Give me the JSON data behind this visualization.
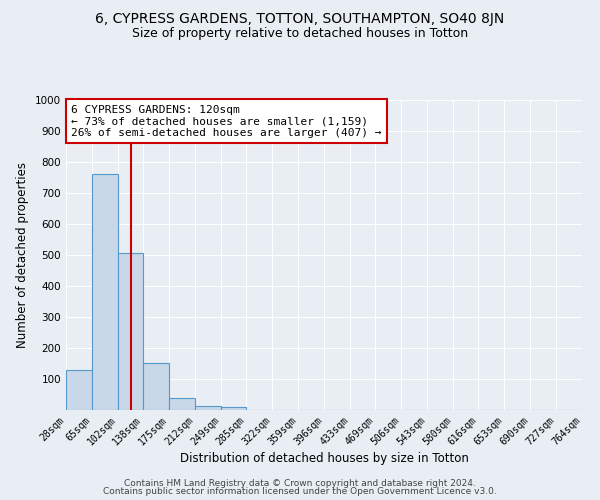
{
  "title": "6, CYPRESS GARDENS, TOTTON, SOUTHAMPTON, SO40 8JN",
  "subtitle": "Size of property relative to detached houses in Totton",
  "xlabel": "Distribution of detached houses by size in Totton",
  "ylabel": "Number of detached properties",
  "bin_edges": [
    28,
    65,
    102,
    138,
    175,
    212,
    249,
    285,
    322,
    359,
    396,
    433,
    469,
    506,
    543,
    580,
    616,
    653,
    690,
    727,
    764
  ],
  "bar_heights": [
    128,
    760,
    507,
    152,
    38,
    13,
    10,
    0,
    0,
    0,
    0,
    0,
    0,
    0,
    0,
    0,
    0,
    0,
    0,
    0
  ],
  "bar_color": "#c8d8e8",
  "bar_edge_color": "#5599cc",
  "property_size": 120,
  "red_line_color": "#cc0000",
  "annotation_text": "6 CYPRESS GARDENS: 120sqm\n← 73% of detached houses are smaller (1,159)\n26% of semi-detached houses are larger (407) →",
  "annotation_box_color": "#ffffff",
  "annotation_box_edge_color": "#cc0000",
  "ylim": [
    0,
    1000
  ],
  "yticks": [
    100,
    200,
    300,
    400,
    500,
    600,
    700,
    800,
    900,
    1000
  ],
  "background_color": "#e8eef4",
  "grid_color": "#ffffff",
  "footer_line1": "Contains HM Land Registry data © Crown copyright and database right 2024.",
  "footer_line2": "Contains public sector information licensed under the Open Government Licence v3.0.",
  "title_fontsize": 10,
  "subtitle_fontsize": 9,
  "tick_label_fontsize": 7,
  "axis_label_fontsize": 8.5,
  "annotation_fontsize": 8,
  "footer_fontsize": 6.5
}
